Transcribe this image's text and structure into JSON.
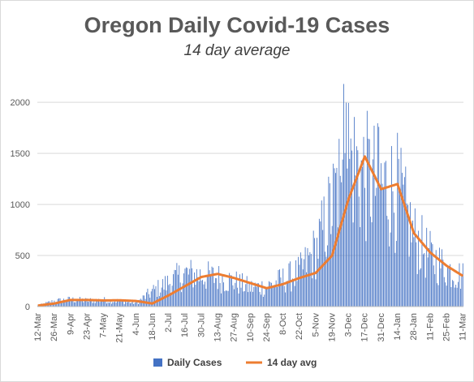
{
  "chart_data": {
    "type": "bar",
    "title": "Oregon Daily Covid-19 Cases",
    "subtitle": "14 day average",
    "xlabel": "",
    "ylabel": "",
    "ylim": [
      0,
      2200
    ],
    "yticks": [
      0,
      500,
      1000,
      1500,
      2000
    ],
    "x_tick_labels": [
      "12-Mar",
      "26-Mar",
      "9-Apr",
      "23-Apr",
      "7-May",
      "21-May",
      "4-Jun",
      "18-Jun",
      "2-Jul",
      "16-Jul",
      "30-Jul",
      "13-Aug",
      "27-Aug",
      "10-Sep",
      "24-Sep",
      "8-Oct",
      "22-Oct",
      "5-Nov",
      "19-Nov",
      "3-Dec",
      "17-Dec",
      "31-Dec",
      "14-Jan",
      "28-Jan",
      "11-Feb",
      "25-Feb",
      "11-Mar"
    ],
    "grid": true,
    "legend_position": "bottom",
    "colors": {
      "bars": "#4472c4",
      "line": "#ed7d31"
    },
    "series": [
      {
        "name": "Daily Cases",
        "type": "bar",
        "values_sampled_every_7_days": [
          10,
          55,
          70,
          60,
          65,
          55,
          35,
          150,
          240,
          330,
          310,
          290,
          250,
          190,
          200,
          270,
          340,
          560,
          1000,
          1500,
          1300,
          1200,
          1150,
          700,
          500,
          380,
          300
        ]
      },
      {
        "name": "14 day avg",
        "type": "line",
        "values_sampled_every_7_days": [
          10,
          30,
          65,
          65,
          60,
          62,
          55,
          30,
          110,
          200,
          290,
          320,
          280,
          230,
          180,
          220,
          280,
          330,
          500,
          1050,
          1470,
          1150,
          1200,
          720,
          530,
          400,
          300
        ]
      }
    ]
  }
}
